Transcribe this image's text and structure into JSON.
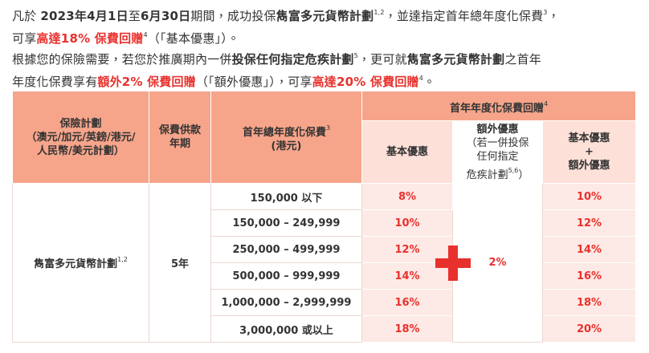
{
  "paragraphs": [
    [
      [
        {
          "text": "凡於 "
        },
        {
          "text": "2023年4月1日",
          "b": true
        },
        {
          "text": "至"
        },
        {
          "text": "6月30日",
          "b": true
        },
        {
          "text": "期間，成功投保"
        },
        {
          "text": "雋富多元貨幣計劃",
          "b": true
        },
        {
          "text": "1,2",
          "sup": true
        },
        {
          "text": "，並達指定首年總年度化保費"
        },
        {
          "text": "3",
          "sup": true
        },
        {
          "text": "，"
        }
      ],
      [
        {
          "text": "可享"
        },
        {
          "text": "高達18% 保費回贈",
          "b": true,
          "red": true
        },
        {
          "text": "4",
          "sup": true
        },
        {
          "text": "（「基本優惠」）。"
        }
      ]
    ],
    [
      [
        {
          "text": "根據您的保險需要，若您於推廣期內一併"
        },
        {
          "text": "投保任何指定危疾計劃",
          "b": true
        },
        {
          "text": "5",
          "sup": true
        },
        {
          "text": "，更可就"
        },
        {
          "text": "雋富多元貨幣計劃",
          "b": true
        },
        {
          "text": "之首年"
        }
      ],
      [
        {
          "text": "年度化保費享有"
        },
        {
          "text": "額外2% 保費回贈",
          "b": true,
          "red": true
        },
        {
          "text": "（「額外優惠」），可享"
        },
        {
          "text": "高達20% 保費回贈",
          "b": true,
          "red": true
        },
        {
          "text": "4",
          "sup": true
        },
        {
          "text": "。"
        }
      ]
    ]
  ],
  "table": {
    "headers": {
      "plan": [
        [
          {
            "text": "保險計劃"
          }
        ],
        [
          {
            "text": "（澳元/加元/英鎊/港元/"
          }
        ],
        [
          {
            "text": "人民幣/美元計劃）"
          }
        ]
      ],
      "term": [
        [
          {
            "text": "保費供款"
          }
        ],
        [
          {
            "text": "年期"
          }
        ]
      ],
      "premium": [
        [
          {
            "text": "首年總年度化保費"
          },
          {
            "text": "3",
            "sup": true
          }
        ],
        [
          {
            "text": "(港元)"
          }
        ]
      ],
      "group": [
        [
          {
            "text": "首年年度化保費回贈"
          },
          {
            "text": "4",
            "sup": true
          }
        ]
      ],
      "basic": [
        [
          {
            "text": "基本優惠"
          }
        ]
      ],
      "extra": [
        [
          {
            "text": "額外優惠"
          }
        ],
        [
          {
            "text": "（若一併投保",
            "normal": true
          }
        ],
        [
          {
            "text": "任何指定",
            "normal": true
          }
        ],
        [
          {
            "text": "危疾計劃",
            "normal": true
          },
          {
            "text": "5,6",
            "sup": true
          },
          {
            "text": "）",
            "normal": true
          }
        ]
      ],
      "total": [
        [
          {
            "text": "基本優惠"
          }
        ],
        [
          {
            "text": "+"
          }
        ],
        [
          {
            "text": "額外優惠"
          }
        ]
      ]
    },
    "plan": [
      [
        {
          "text": "雋富多元貨幣計劃"
        },
        {
          "text": "1,2",
          "sup": true
        }
      ]
    ],
    "term": "5年",
    "extra": "2%",
    "rows": [
      {
        "premium": "150,000 以下",
        "basic": "8%",
        "total": "10%"
      },
      {
        "premium": "150,000 – 249,999",
        "basic": "10%",
        "total": "12%"
      },
      {
        "premium": "250,000 – 499,999",
        "basic": "12%",
        "total": "14%"
      },
      {
        "premium": "500,000 – 999,999",
        "basic": "14%",
        "total": "16%"
      },
      {
        "premium": "1,000,000 – 2,999,999",
        "basic": "16%",
        "total": "18%"
      },
      {
        "premium": "3,000,000 或以上",
        "basic": "18%",
        "total": "20%"
      }
    ]
  }
}
